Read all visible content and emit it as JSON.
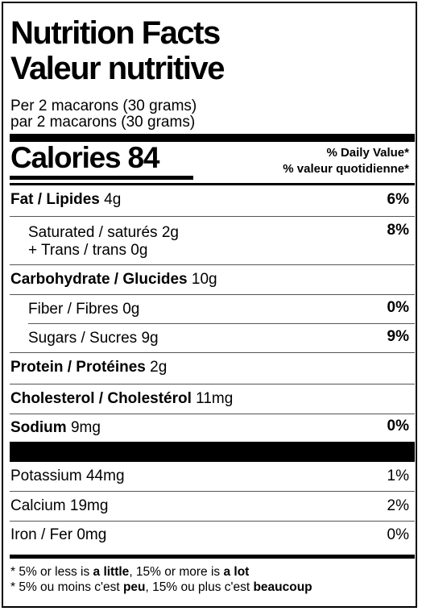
{
  "title": {
    "en": "Nutrition Facts",
    "fr": "Valeur nutritive"
  },
  "serving": {
    "en": "Per 2 macarons (30 grams)",
    "fr": "par 2 macarons (30 grams)"
  },
  "calories": {
    "label": "Calories",
    "value": "84"
  },
  "daily_value_header": {
    "en": "% Daily Value*",
    "fr": "% valeur quotidienne*"
  },
  "nutrients": {
    "fat": {
      "label": "Fat / Lipides",
      "amount": "4g",
      "dv": "6%"
    },
    "saturated": {
      "label": "Saturated / saturés",
      "amount": "2g",
      "dv": "8%"
    },
    "trans": {
      "label": "+ Trans / trans",
      "amount": "0g"
    },
    "carbohydrate": {
      "label": "Carbohydrate / Glucides",
      "amount": "10g"
    },
    "fiber": {
      "label": "Fiber / Fibres",
      "amount": "0g",
      "dv": "0%"
    },
    "sugars": {
      "label": "Sugars / Sucres",
      "amount": "9g",
      "dv": "9%"
    },
    "protein": {
      "label": "Protein / Protéines",
      "amount": "2g"
    },
    "cholesterol": {
      "label": "Cholesterol / Cholestérol",
      "amount": "11mg"
    },
    "sodium": {
      "label": "Sodium",
      "amount": "9mg",
      "dv": "0%"
    }
  },
  "minerals": {
    "potassium": {
      "label": "Potassium",
      "amount": "44mg",
      "dv": "1%"
    },
    "calcium": {
      "label": "Calcium",
      "amount": "19mg",
      "dv": "2%"
    },
    "iron": {
      "label": "Iron / Fer",
      "amount": "0mg",
      "dv": "0%"
    }
  },
  "footnote": {
    "en": {
      "pre": "* 5% or less is ",
      "little": "a little",
      "mid": ", 15% or more is ",
      "lot": "a lot"
    },
    "fr": {
      "pre": "* 5% ou moins c'est ",
      "little": "peu",
      "mid": ", 15% ou plus c'est ",
      "lot": "beaucoup"
    }
  }
}
